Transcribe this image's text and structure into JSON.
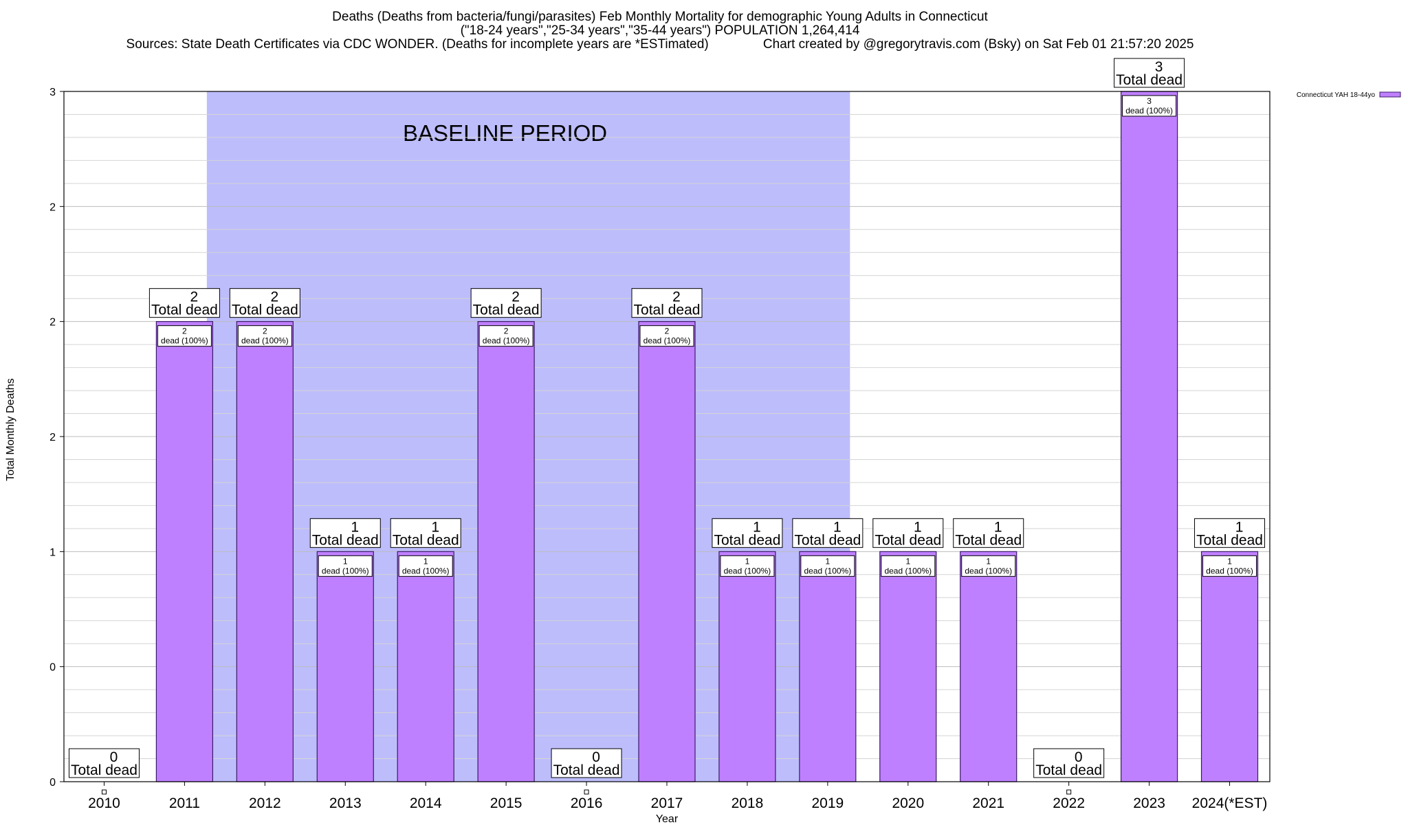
{
  "chart_data": {
    "type": "bar",
    "title_lines": [
      "Deaths (Deaths from bacteria/fungi/parasites) Feb Monthly Mortality for demographic Young Adults in Connecticut",
      "(\"18-24 years\",\"25-34 years\",\"35-44 years\") POPULATION 1,264,414",
      "Sources: State Death Certificates via CDC WONDER. (Deaths for incomplete years are *ESTimated)               Chart created by @gregorytravis.com (Bsky) on Sat Feb 01 21:57:20 2025"
    ],
    "xlabel": "Year",
    "ylabel": "Total Monthly Deaths",
    "categories": [
      "2010",
      "2011",
      "2012",
      "2013",
      "2014",
      "2015",
      "2016",
      "2017",
      "2018",
      "2019",
      "2020",
      "2021",
      "2022",
      "2023",
      "2024(*EST)"
    ],
    "values": [
      0,
      2,
      2,
      1,
      1,
      2,
      0,
      2,
      1,
      1,
      1,
      1,
      0,
      3,
      1
    ],
    "series": [
      {
        "name": "Connecticut YAH 18-44yo",
        "values": [
          0,
          2,
          2,
          1,
          1,
          2,
          0,
          2,
          1,
          1,
          1,
          1,
          0,
          3,
          1
        ],
        "color": "#bf80ff"
      }
    ],
    "ylim": [
      0,
      3
    ],
    "y_tick_labels": [
      "0",
      "0",
      "1",
      "2",
      "2",
      "2",
      "3"
    ],
    "y_tick_values": [
      0,
      0.5,
      1,
      1.5,
      2,
      2.5,
      3
    ],
    "total_label_text": "Total dead",
    "inner_label_text": "dead (100%)",
    "baseline": {
      "label": "BASELINE PERIOD",
      "start": "2012",
      "end": "2019",
      "color": "#bdbdfc"
    },
    "grid": true,
    "legend_position": "top-right",
    "bar_color": "#bf80ff",
    "bar_border_color": "#3a1a66"
  }
}
